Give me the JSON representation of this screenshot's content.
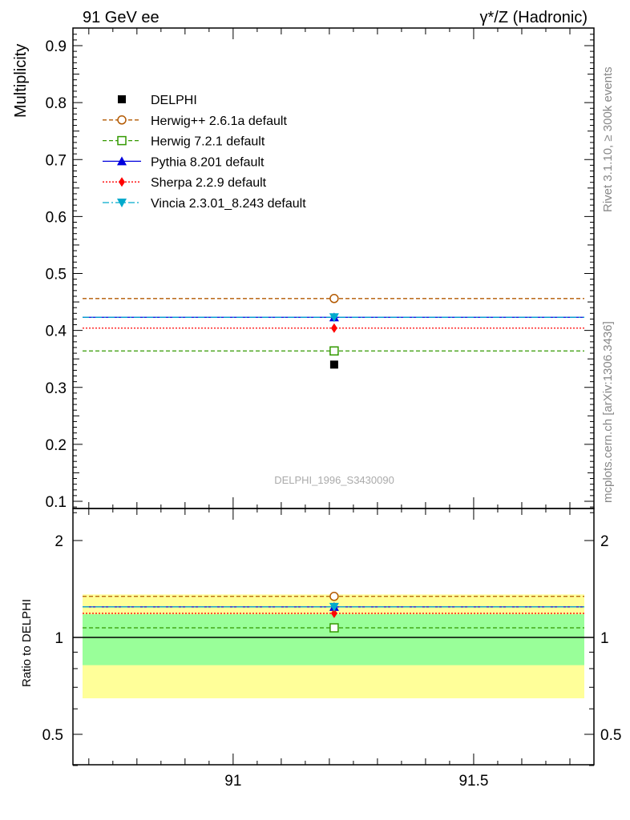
{
  "header": {
    "left": "91 GeV ee",
    "right": "γ*/Z (Hadronic)"
  },
  "side_text": {
    "rivet": "Rivet 3.1.10, ≥ 300k events",
    "mcplots": "mcplots.cern.ch [arXiv:1306.3436]"
  },
  "analysis_label": "DELPHI_1996_S3430090",
  "chart_data": [
    {
      "type": "scatter",
      "ylabel": "Multiplicity",
      "xlim": [
        90.667,
        91.75
      ],
      "ylim": [
        0.08,
        0.93
      ],
      "yticks": [
        "0.1",
        "0.2",
        "0.3",
        "0.4",
        "0.5",
        "0.6",
        "0.7",
        "0.8",
        "0.9"
      ],
      "bin": [
        90.687,
        91.73
      ],
      "x": 91.21,
      "data": {
        "name": "DELPHI",
        "value": 0.34,
        "color": "#000000"
      },
      "series": [
        {
          "name": "Herwig++ 2.6.1a default",
          "value": 0.456,
          "color": "#b35900",
          "marker": "circle",
          "dash": "5,3"
        },
        {
          "name": "Herwig 7.2.1 default",
          "value": 0.364,
          "color": "#339900",
          "marker": "square",
          "dash": "5,3"
        },
        {
          "name": "Pythia 8.201 default",
          "value": 0.423,
          "color": "#0000dd",
          "marker": "triangle-up",
          "dash": ""
        },
        {
          "name": "Sherpa 2.2.9 default",
          "value": 0.404,
          "color": "#ff0000",
          "marker": "diamond",
          "dash": "2,2"
        },
        {
          "name": "Vincia 2.3.01_8.243 default",
          "value": 0.423,
          "color": "#00aacc",
          "marker": "triangle-down",
          "dash": "8,3,2,3"
        }
      ],
      "legend": "top-left"
    },
    {
      "type": "scatter",
      "ylabel": "Ratio to DELPHI",
      "yscale": "log",
      "ylim": [
        0.4,
        2.52
      ],
      "yticks": [
        "0.5",
        "1",
        "2"
      ],
      "xticks": [
        "91",
        "91.5"
      ],
      "bands": {
        "outer": [
          0.647,
          1.36
        ],
        "inner": [
          0.82,
          1.18
        ],
        "outer_color": "#ffff99",
        "inner_color": "#99ff99"
      },
      "ratios": [
        1.341,
        1.071,
        1.244,
        1.188,
        1.244
      ]
    }
  ]
}
